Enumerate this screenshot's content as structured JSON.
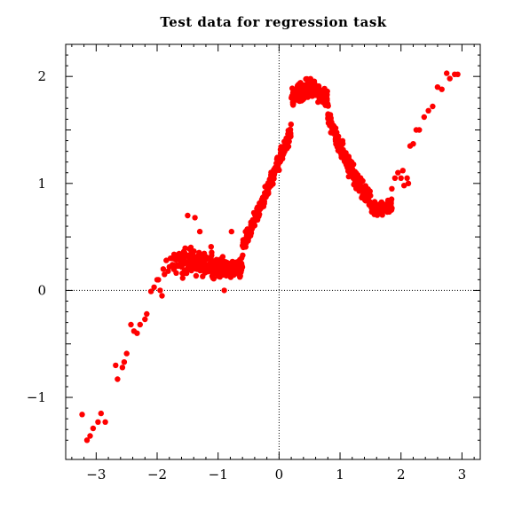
{
  "chart_data": {
    "type": "scatter",
    "title": "Test data for regression task",
    "xlabel": "",
    "ylabel": "",
    "xlim": [
      -3.5,
      3.3
    ],
    "ylim": [
      -1.58,
      2.3
    ],
    "x_ticks": [
      -3,
      -2,
      -1,
      0,
      1,
      2,
      3
    ],
    "x_tick_labels": [
      "−3",
      "−2",
      "−1",
      "0",
      "1",
      "2",
      "3"
    ],
    "y_ticks": [
      -1,
      0,
      1,
      2
    ],
    "y_tick_labels": [
      "−1",
      "0",
      "1",
      "2"
    ],
    "reference_lines": {
      "x": 0,
      "y": 0,
      "style": "dotted"
    },
    "grid": false,
    "legend": "none",
    "marker_color": "#ff0000",
    "series": [
      {
        "values": [
          [
            -3.23,
            -1.16
          ],
          [
            -3.15,
            -1.4
          ],
          [
            -3.1,
            -1.36
          ],
          [
            -3.05,
            -1.29
          ],
          [
            -2.97,
            -1.23
          ],
          [
            -2.92,
            -1.15
          ],
          [
            -2.85,
            -1.23
          ],
          [
            -2.68,
            -0.7
          ],
          [
            -2.65,
            -0.83
          ],
          [
            -2.57,
            -0.72
          ],
          [
            -2.54,
            -0.67
          ],
          [
            -2.5,
            -0.59
          ],
          [
            -2.43,
            -0.32
          ],
          [
            -2.38,
            -0.38
          ],
          [
            -2.33,
            -0.4
          ],
          [
            -2.28,
            -0.32
          ],
          [
            -2.2,
            -0.27
          ],
          [
            -2.17,
            -0.22
          ],
          [
            -2.1,
            -0.01
          ],
          [
            -2.05,
            0.03
          ],
          [
            -2.0,
            0.1
          ],
          [
            -1.98,
            0.1
          ],
          [
            -1.95,
            0.0
          ],
          [
            -1.92,
            -0.05
          ],
          [
            -1.9,
            0.2
          ],
          [
            -1.88,
            0.15
          ],
          [
            -1.85,
            0.28
          ],
          [
            -1.82,
            0.18
          ],
          [
            -1.8,
            0.22
          ],
          [
            -1.78,
            0.3
          ],
          [
            -1.75,
            0.24
          ]
        ],
        "segments": [
          {
            "x_start": -1.75,
            "x_end": -1.1,
            "count": 130,
            "curve": [
              0.25,
              0.27
            ],
            "y_spread": 0.12
          },
          {
            "x_start": -1.1,
            "x_end": -0.6,
            "count": 160,
            "curve": [
              0.2,
              0.22
            ],
            "y_spread": 0.08
          },
          {
            "x_start": -0.6,
            "x_end": 0.2,
            "count": 250,
            "curve": [
              0.4,
              1.5
            ],
            "y_spread": 0.07
          },
          {
            "x_start": 0.2,
            "x_end": 0.8,
            "count": 220,
            "curve": [
              1.85,
              1.75
            ],
            "y_spread": 0.08
          },
          {
            "x_start": 0.8,
            "x_end": 1.5,
            "count": 180,
            "curve": [
              1.3,
              0.85
            ],
            "y_spread": 0.09
          },
          {
            "x_start": 1.5,
            "x_end": 1.85,
            "count": 70,
            "curve": [
              0.75,
              0.8
            ],
            "y_spread": 0.07
          }
        ],
        "tail": [
          [
            1.85,
            0.95
          ],
          [
            1.9,
            1.05
          ],
          [
            1.95,
            1.1
          ],
          [
            2.0,
            1.05
          ],
          [
            2.03,
            1.12
          ],
          [
            2.05,
            0.98
          ],
          [
            2.1,
            1.05
          ],
          [
            2.12,
            1.0
          ],
          [
            2.15,
            1.35
          ],
          [
            2.2,
            1.37
          ],
          [
            2.25,
            1.5
          ],
          [
            2.3,
            1.5
          ],
          [
            2.38,
            1.62
          ],
          [
            2.45,
            1.68
          ],
          [
            2.52,
            1.72
          ],
          [
            2.6,
            1.9
          ],
          [
            2.67,
            1.88
          ],
          [
            2.75,
            2.03
          ],
          [
            2.8,
            1.98
          ],
          [
            2.88,
            2.02
          ],
          [
            2.93,
            2.02
          ],
          [
            -1.5,
            0.7
          ],
          [
            -1.38,
            0.68
          ],
          [
            -1.3,
            0.55
          ],
          [
            -0.78,
            0.55
          ],
          [
            -0.55,
            0.55
          ],
          [
            -0.9,
            0.0
          ]
        ]
      }
    ]
  }
}
